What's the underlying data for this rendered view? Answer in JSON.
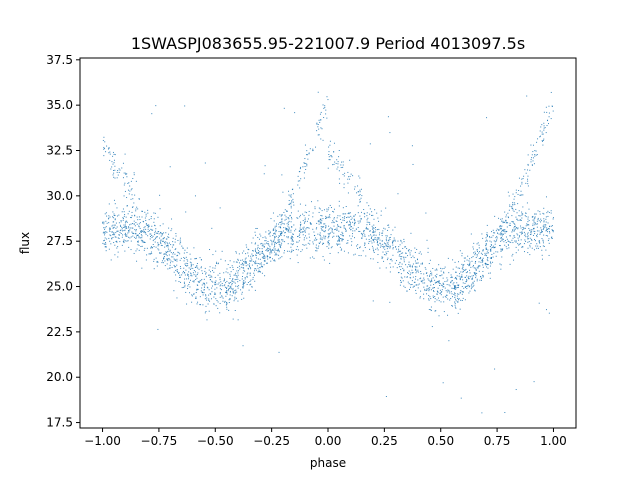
{
  "chart_data": {
    "type": "scatter",
    "title": "1SWASPJ083655.95-221007.9 Period 4013097.5s",
    "xlabel": "phase",
    "ylabel": "flux",
    "xlim": [
      -1.1,
      1.1
    ],
    "ylim": [
      17.2,
      37.6
    ],
    "xticks": [
      -1.0,
      -0.75,
      -0.5,
      -0.25,
      0.0,
      0.25,
      0.5,
      0.75,
      1.0
    ],
    "xtick_labels": [
      "−1.00",
      "−0.75",
      "−0.50",
      "−0.25",
      "0.00",
      "0.25",
      "0.50",
      "0.75",
      "1.00"
    ],
    "yticks": [
      17.5,
      20.0,
      22.5,
      25.0,
      27.5,
      30.0,
      32.5,
      35.0,
      37.5
    ],
    "ytick_labels": [
      "17.5",
      "20.0",
      "22.5",
      "25.0",
      "27.5",
      "30.0",
      "32.5",
      "35.0",
      "37.5"
    ],
    "grid": false,
    "marker_color": "#1f77b4",
    "series": [
      {
        "values_summary": "phase-folded light curve, mirrored over phase -1 to 1",
        "points": [
          {
            "x": -1.0,
            "y": 28.5
          },
          {
            "x": -0.9,
            "y": 28.3
          },
          {
            "x": -0.8,
            "y": 27.8
          },
          {
            "x": -0.7,
            "y": 27.0
          },
          {
            "x": -0.6,
            "y": 26.0
          },
          {
            "x": -0.5,
            "y": 25.5
          },
          {
            "x": -0.4,
            "y": 25.4
          },
          {
            "x": -0.3,
            "y": 26.5
          },
          {
            "x": -0.2,
            "y": 27.5
          },
          {
            "x": -0.1,
            "y": 28.0
          },
          {
            "x": 0.0,
            "y": 28.8
          },
          {
            "x": 0.1,
            "y": 28.5
          },
          {
            "x": 0.2,
            "y": 28.0
          },
          {
            "x": 0.3,
            "y": 27.2
          },
          {
            "x": 0.4,
            "y": 26.3
          },
          {
            "x": 0.5,
            "y": 25.6
          },
          {
            "x": 0.6,
            "y": 25.2
          },
          {
            "x": 0.7,
            "y": 26.2
          },
          {
            "x": 0.8,
            "y": 27.3
          },
          {
            "x": 0.9,
            "y": 28.0
          },
          {
            "x": 1.0,
            "y": 28.8
          },
          {
            "x": -0.9,
            "y": 32.3
          },
          {
            "x": -0.85,
            "y": 30.8
          },
          {
            "x": -0.8,
            "y": 29.2
          },
          {
            "x": -0.45,
            "y": 24.7
          },
          {
            "x": -0.35,
            "y": 24.8
          },
          {
            "x": -0.2,
            "y": 30.2
          },
          {
            "x": -0.1,
            "y": 32.8
          },
          {
            "x": -0.03,
            "y": 34.6
          },
          {
            "x": 0.05,
            "y": 32.5
          },
          {
            "x": 0.12,
            "y": 30.5
          },
          {
            "x": 0.55,
            "y": 24.6
          },
          {
            "x": 0.65,
            "y": 24.8
          },
          {
            "x": 0.8,
            "y": 30.2
          },
          {
            "x": 0.9,
            "y": 32.8
          },
          {
            "x": 0.97,
            "y": 34.6
          }
        ]
      }
    ]
  }
}
